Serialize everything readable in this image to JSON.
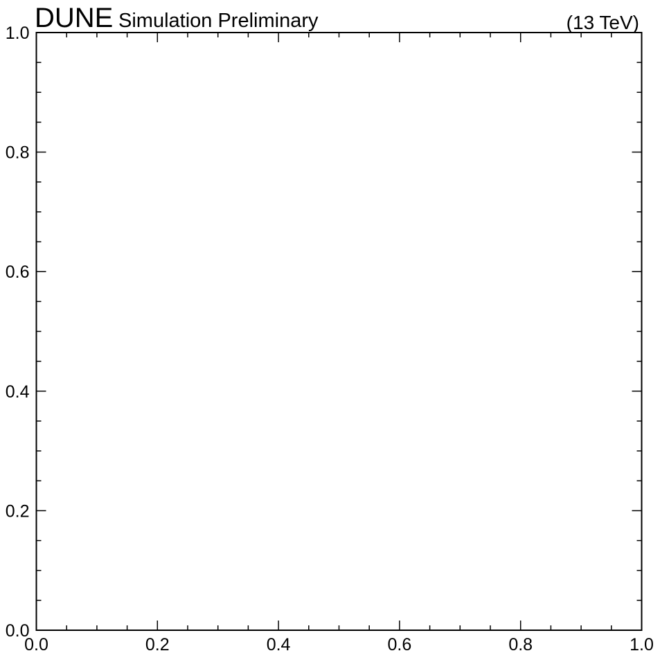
{
  "header": {
    "experiment": "DUNE",
    "tagline": "Simulation Preliminary",
    "energy": "(13 TeV)"
  },
  "chart_data": {
    "type": "scatter",
    "title": "",
    "xlabel": "",
    "ylabel": "",
    "xlim": [
      0.0,
      1.0
    ],
    "ylim": [
      0.0,
      1.0
    ],
    "x_ticks": [
      "0.0",
      "0.2",
      "0.4",
      "0.6",
      "0.8",
      "1.0"
    ],
    "y_ticks": [
      "0.0",
      "0.2",
      "0.4",
      "0.6",
      "0.8",
      "1.0"
    ],
    "series": [],
    "grid": false,
    "legend": "none"
  }
}
